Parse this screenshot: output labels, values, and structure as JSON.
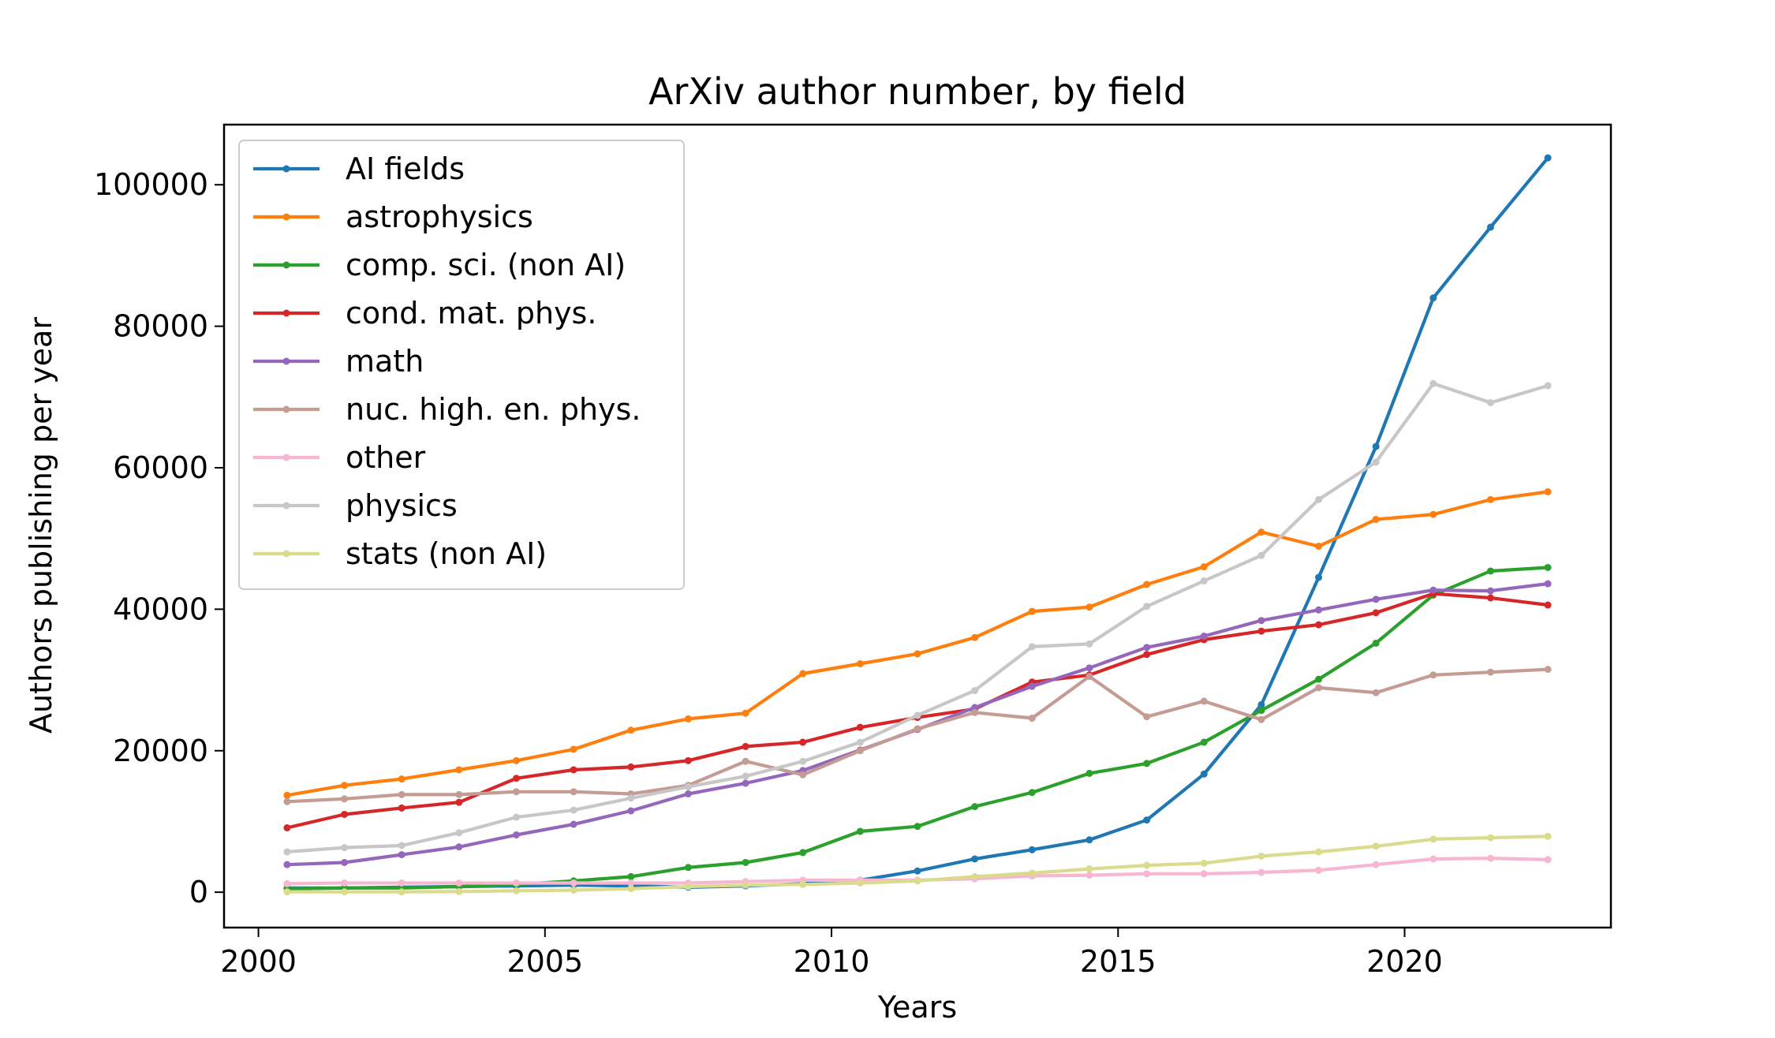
{
  "chart_data": {
    "type": "line",
    "title": "ArXiv author number, by field",
    "xlabel": "Years",
    "ylabel": "Authors publishing per year",
    "xlim": [
      1999.4,
      2023.6
    ],
    "ylim": [
      -5000,
      108500
    ],
    "xticks": [
      2000,
      2005,
      2010,
      2015,
      2020
    ],
    "yticks": [
      0,
      20000,
      40000,
      60000,
      80000,
      100000
    ],
    "grid": false,
    "legend_position": "top-left",
    "x": [
      2000.5,
      2001.5,
      2002.5,
      2003.5,
      2004.5,
      2005.5,
      2006.5,
      2007.5,
      2008.5,
      2009.5,
      2010.5,
      2011.5,
      2012.5,
      2013.5,
      2014.5,
      2015.5,
      2016.5,
      2017.5,
      2018.5,
      2019.5,
      2020.5,
      2021.5,
      2022.5
    ],
    "series": [
      {
        "name": "AI fields",
        "color": "#1f77b4",
        "values": [
          600,
          600,
          700,
          800,
          900,
          1000,
          900,
          700,
          900,
          1200,
          1700,
          3000,
          4700,
          6000,
          7400,
          10200,
          16700,
          26500,
          44500,
          63000,
          84000,
          94000,
          103800
        ]
      },
      {
        "name": "astrophysics",
        "color": "#ff7f0e",
        "values": [
          13700,
          15100,
          16000,
          17300,
          18600,
          20200,
          22900,
          24500,
          25300,
          30900,
          32300,
          33700,
          36000,
          39700,
          40300,
          43500,
          46000,
          50900,
          48900,
          52700,
          53400,
          55500,
          56600
        ]
      },
      {
        "name": "comp. sci. (non AI)",
        "color": "#2ca02c",
        "values": [
          500,
          600,
          600,
          800,
          1100,
          1600,
          2200,
          3500,
          4200,
          5600,
          8600,
          9300,
          12100,
          14100,
          16800,
          18200,
          21200,
          25700,
          30100,
          35200,
          42000,
          45400,
          45900
        ]
      },
      {
        "name": "cond. mat. phys.",
        "color": "#d62728",
        "values": [
          9100,
          11000,
          11900,
          12700,
          16100,
          17300,
          17700,
          18600,
          20600,
          21200,
          23300,
          24700,
          25900,
          29700,
          30700,
          33600,
          35700,
          36900,
          37800,
          39500,
          42200,
          41600,
          40600
        ]
      },
      {
        "name": "math",
        "color": "#9467bd",
        "values": [
          3900,
          4200,
          5300,
          6400,
          8100,
          9600,
          11500,
          13900,
          15400,
          17200,
          20100,
          23000,
          26100,
          29100,
          31700,
          34600,
          36200,
          38400,
          39900,
          41400,
          42700,
          42600,
          43600
        ]
      },
      {
        "name": "nuc. high. en. phys.",
        "color": "#c49c94",
        "values": [
          12800,
          13200,
          13800,
          13800,
          14200,
          14200,
          13900,
          15100,
          18500,
          16600,
          20000,
          23100,
          25400,
          24600,
          30500,
          24800,
          27000,
          24400,
          28900,
          28200,
          30700,
          31100,
          31500
        ]
      },
      {
        "name": "other",
        "color": "#f7b6d2",
        "values": [
          1200,
          1300,
          1300,
          1300,
          1300,
          1300,
          1300,
          1300,
          1500,
          1700,
          1700,
          1700,
          1900,
          2300,
          2400,
          2600,
          2600,
          2800,
          3100,
          3900,
          4700,
          4800,
          4600
        ]
      },
      {
        "name": "physics",
        "color": "#c7c7c7",
        "values": [
          5700,
          6300,
          6600,
          8400,
          10600,
          11600,
          13300,
          14900,
          16400,
          18500,
          21200,
          25000,
          28500,
          34700,
          35100,
          40400,
          44000,
          47600,
          55500,
          60800,
          71900,
          69200,
          71600
        ]
      },
      {
        "name": "stats (non AI)",
        "color": "#dbdb8d",
        "values": [
          50,
          50,
          50,
          100,
          200,
          300,
          500,
          800,
          1000,
          1100,
          1300,
          1600,
          2200,
          2700,
          3300,
          3800,
          4100,
          5100,
          5700,
          6500,
          7500,
          7700,
          7900
        ]
      }
    ]
  }
}
